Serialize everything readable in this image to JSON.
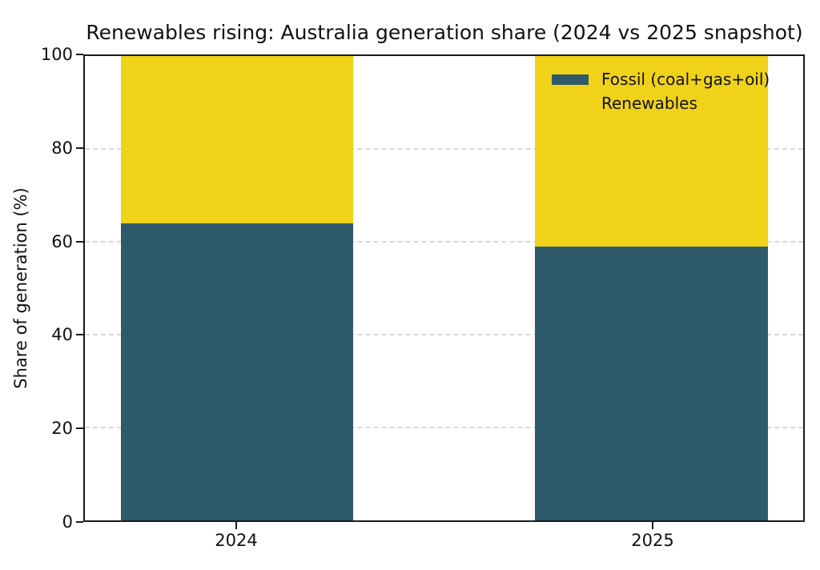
{
  "chart_data": {
    "type": "bar",
    "stacked": true,
    "title": "Renewables rising: Australia generation share (2024 vs 2025 snapshot)",
    "xlabel": "",
    "ylabel": "Share of generation (%)",
    "categories": [
      "2024",
      "2025"
    ],
    "series": [
      {
        "name": "Fossil (coal+gas+oil)",
        "color": "#2F5A6B",
        "values": [
          64,
          59
        ]
      },
      {
        "name": "Renewables",
        "color": "#F0D219",
        "values": [
          36,
          41
        ]
      }
    ],
    "ylim": [
      0,
      100
    ],
    "yticks": [
      "0",
      "20",
      "40",
      "60",
      "80",
      "100"
    ],
    "grid": "horizontal dashed",
    "gridline_color": "#d9d9d9",
    "spine_color": "#1a1a1a",
    "legend_position": "upper right",
    "legend_frame": false
  }
}
